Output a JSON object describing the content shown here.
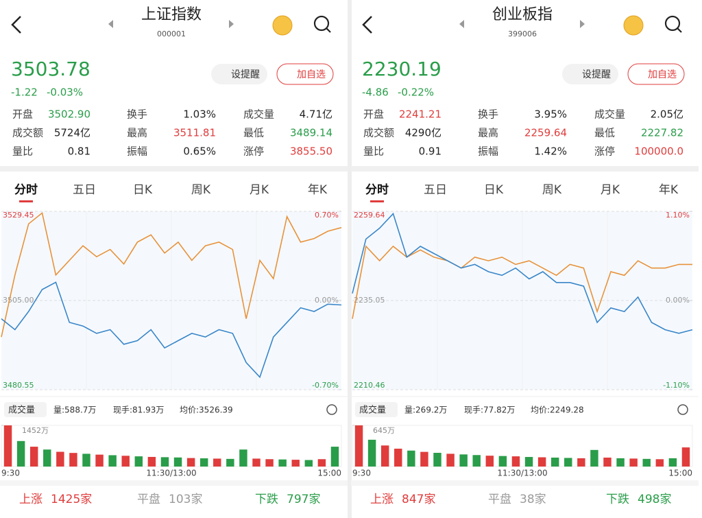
{
  "panels": [
    {
      "title": "上证指数",
      "code": "000001",
      "price": "3503.78",
      "change": "-1.22",
      "change_pct": "-0.03%",
      "buttons": [
        "设提醒",
        "加自选"
      ],
      "stats": [
        [
          {
            "label": "开盘",
            "value": "3502.90",
            "color": "#2a9d4a"
          },
          {
            "label": "换手",
            "value": "1.03%",
            "color": "#222222"
          },
          {
            "label": "成交量",
            "value": "4.71亿",
            "color": "#222222"
          }
        ],
        [
          {
            "label": "成交额",
            "value": "5724亿",
            "color": "#222222"
          },
          {
            "label": "最高",
            "value": "3511.81",
            "color": "#e03c3c"
          },
          {
            "label": "最低",
            "value": "3489.14",
            "color": "#2a9d4a"
          }
        ],
        [
          {
            "label": "量比",
            "value": "0.81",
            "color": "#222222"
          },
          {
            "label": "振幅",
            "value": "0.65%",
            "color": "#222222"
          },
          {
            "label": "涨停",
            "value": "3855.50",
            "color": "#e03c3c"
          }
        ]
      ],
      "tabs": [
        "分时",
        "五日",
        "日K",
        "周K",
        "月K",
        "年K"
      ],
      "chart_data": {
        "type": "line",
        "ylim": [
          3480.55,
          3529.45
        ],
        "yticks": [
          3480.55,
          {
            "value": 3505.0,
            "label": "3505.00"
          },
          3529.45
        ],
        "y2lim": [
          -0.7,
          0.7
        ],
        "y2ticks": [
          {
            "value": -0.7,
            "label": "-0.70%"
          },
          {
            "value": 0,
            "label": "0.00%"
          },
          {
            "value": 0.7,
            "label": "0.70%"
          }
        ],
        "series": [
          {
            "color": "#e8923a",
            "values": [
              3495,
              3512,
              3526,
              3529,
              3512,
              3516,
              3520,
              3517,
              3519,
              3515,
              3521,
              3523,
              3518,
              3521,
              3516,
              3520,
              3521,
              3519,
              3500,
              3516,
              3511,
              3528,
              3521,
              3522,
              3524,
              3525
            ]
          },
          {
            "color": "#3a86c8",
            "values": [
              3500,
              3497,
              3502,
              3508,
              3510,
              3499,
              3498,
              3496,
              3497,
              3493,
              3494,
              3497,
              3492,
              3494,
              3496,
              3495,
              3497,
              3496,
              3488,
              3484,
              3495,
              3499,
              3503,
              3502,
              3504,
              3503.78
            ]
          }
        ]
      },
      "volume": {
        "label": "成交量",
        "vol": "量:588.7万",
        "hand": "现手:81.93万",
        "avg": "均价:3526.39",
        "ylim": [
          0,
          1452
        ],
        "yticks": [
          {
            "value": 1452,
            "label": "1452万"
          }
        ],
        "xticks": [
          "9:30",
          "11:30/13:00",
          "15:00"
        ],
        "values": [
          1452,
          900,
          700,
          600,
          520,
          480,
          450,
          420,
          400,
          380,
          360,
          340,
          330,
          320,
          300,
          290,
          280,
          270,
          600,
          280,
          260,
          250,
          240,
          230,
          260,
          700
        ],
        "colors": [
          "#e03c3c",
          "#2a9d4a",
          "#e03c3c",
          "#2a9d4a",
          "#e03c3c",
          "#e03c3c",
          "#2a9d4a",
          "#e03c3c",
          "#2a9d4a",
          "#e03c3c",
          "#2a9d4a",
          "#e03c3c",
          "#2a9d4a",
          "#2a9d4a",
          "#e03c3c",
          "#2a9d4a",
          "#e03c3c",
          "#2a9d4a",
          "#2a9d4a",
          "#e03c3c",
          "#e03c3c",
          "#2a9d4a",
          "#e03c3c",
          "#2a9d4a",
          "#e03c3c",
          "#2a9d4a"
        ]
      },
      "breadth": [
        {
          "label": "上涨",
          "value": "1425家",
          "color": "#e03c3c"
        },
        {
          "label": "平盘",
          "value": "103家",
          "color": "#9a9a9a"
        },
        {
          "label": "下跌",
          "value": "797家",
          "color": "#2a9d4a"
        }
      ]
    },
    {
      "title": "创业板指",
      "code": "399006",
      "price": "2230.19",
      "change": "-4.86",
      "change_pct": "-0.22%",
      "buttons": [
        "设提醒",
        "加自选"
      ],
      "stats": [
        [
          {
            "label": "开盘",
            "value": "2241.21",
            "color": "#e03c3c"
          },
          {
            "label": "换手",
            "value": "3.95%",
            "color": "#222222"
          },
          {
            "label": "成交量",
            "value": "2.05亿",
            "color": "#222222"
          }
        ],
        [
          {
            "label": "成交额",
            "value": "4290亿",
            "color": "#222222"
          },
          {
            "label": "最高",
            "value": "2259.64",
            "color": "#e03c3c"
          },
          {
            "label": "最低",
            "value": "2227.82",
            "color": "#2a9d4a"
          }
        ],
        [
          {
            "label": "量比",
            "value": "0.91",
            "color": "#222222"
          },
          {
            "label": "振幅",
            "value": "1.42%",
            "color": "#222222"
          },
          {
            "label": "涨停",
            "value": "100000.0",
            "color": "#e03c3c"
          }
        ]
      ],
      "tabs": [
        "分时",
        "五日",
        "日K",
        "周K",
        "月K",
        "年K"
      ],
      "chart_data": {
        "type": "line",
        "ylim": [
          2210.46,
          2259.64
        ],
        "yticks": [
          2210.46,
          2235.05,
          2259.64
        ],
        "y2lim": [
          -1.1,
          1.1
        ],
        "y2ticks": [
          {
            "value": -1.1,
            "label": "-1.10%"
          },
          {
            "value": 0,
            "label": "0.00%"
          },
          {
            "value": 1.1,
            "label": "1.10%"
          }
        ],
        "series": [
          {
            "color": "#e8923a",
            "values": [
              2230,
              2250,
              2246,
              2250,
              2247,
              2249,
              2247,
              2246,
              2244,
              2247,
              2246,
              2247,
              2245,
              2246,
              2244,
              2242,
              2245,
              2244,
              2232,
              2243,
              2242,
              2246,
              2244,
              2244,
              2245,
              2245
            ]
          },
          {
            "color": "#3a86c8",
            "values": [
              2237,
              2252,
              2255,
              2259,
              2247,
              2250,
              2248,
              2246,
              2244,
              2245,
              2243,
              2242,
              2244,
              2241,
              2243,
              2240,
              2240,
              2239,
              2229,
              2233,
              2232,
              2236,
              2229,
              2227,
              2226,
              2227
            ]
          }
        ]
      },
      "volume": {
        "label": "成交量",
        "vol": "量:269.2万",
        "hand": "现手:77.82万",
        "avg": "均价:2249.28",
        "ylim": [
          0,
          645
        ],
        "yticks": [
          {
            "value": 645,
            "label": "645万"
          }
        ],
        "xticks": [
          "9:30",
          "11:30/13:00",
          "15:00"
        ],
        "values": [
          645,
          420,
          330,
          280,
          250,
          230,
          215,
          200,
          190,
          180,
          170,
          165,
          160,
          150,
          145,
          140,
          135,
          130,
          260,
          140,
          130,
          125,
          120,
          115,
          130,
          300
        ],
        "colors": [
          "#e03c3c",
          "#2a9d4a",
          "#e03c3c",
          "#e03c3c",
          "#2a9d4a",
          "#e03c3c",
          "#2a9d4a",
          "#e03c3c",
          "#2a9d4a",
          "#2a9d4a",
          "#e03c3c",
          "#2a9d4a",
          "#e03c3c",
          "#2a9d4a",
          "#e03c3c",
          "#2a9d4a",
          "#2a9d4a",
          "#e03c3c",
          "#2a9d4a",
          "#e03c3c",
          "#2a9d4a",
          "#e03c3c",
          "#2a9d4a",
          "#e03c3c",
          "#2a9d4a",
          "#e03c3c"
        ]
      },
      "breadth": [
        {
          "label": "上涨",
          "value": "847家",
          "color": "#e03c3c"
        },
        {
          "label": "平盘",
          "value": "38家",
          "color": "#9a9a9a"
        },
        {
          "label": "下跌",
          "value": "498家",
          "color": "#2a9d4a"
        }
      ]
    }
  ]
}
